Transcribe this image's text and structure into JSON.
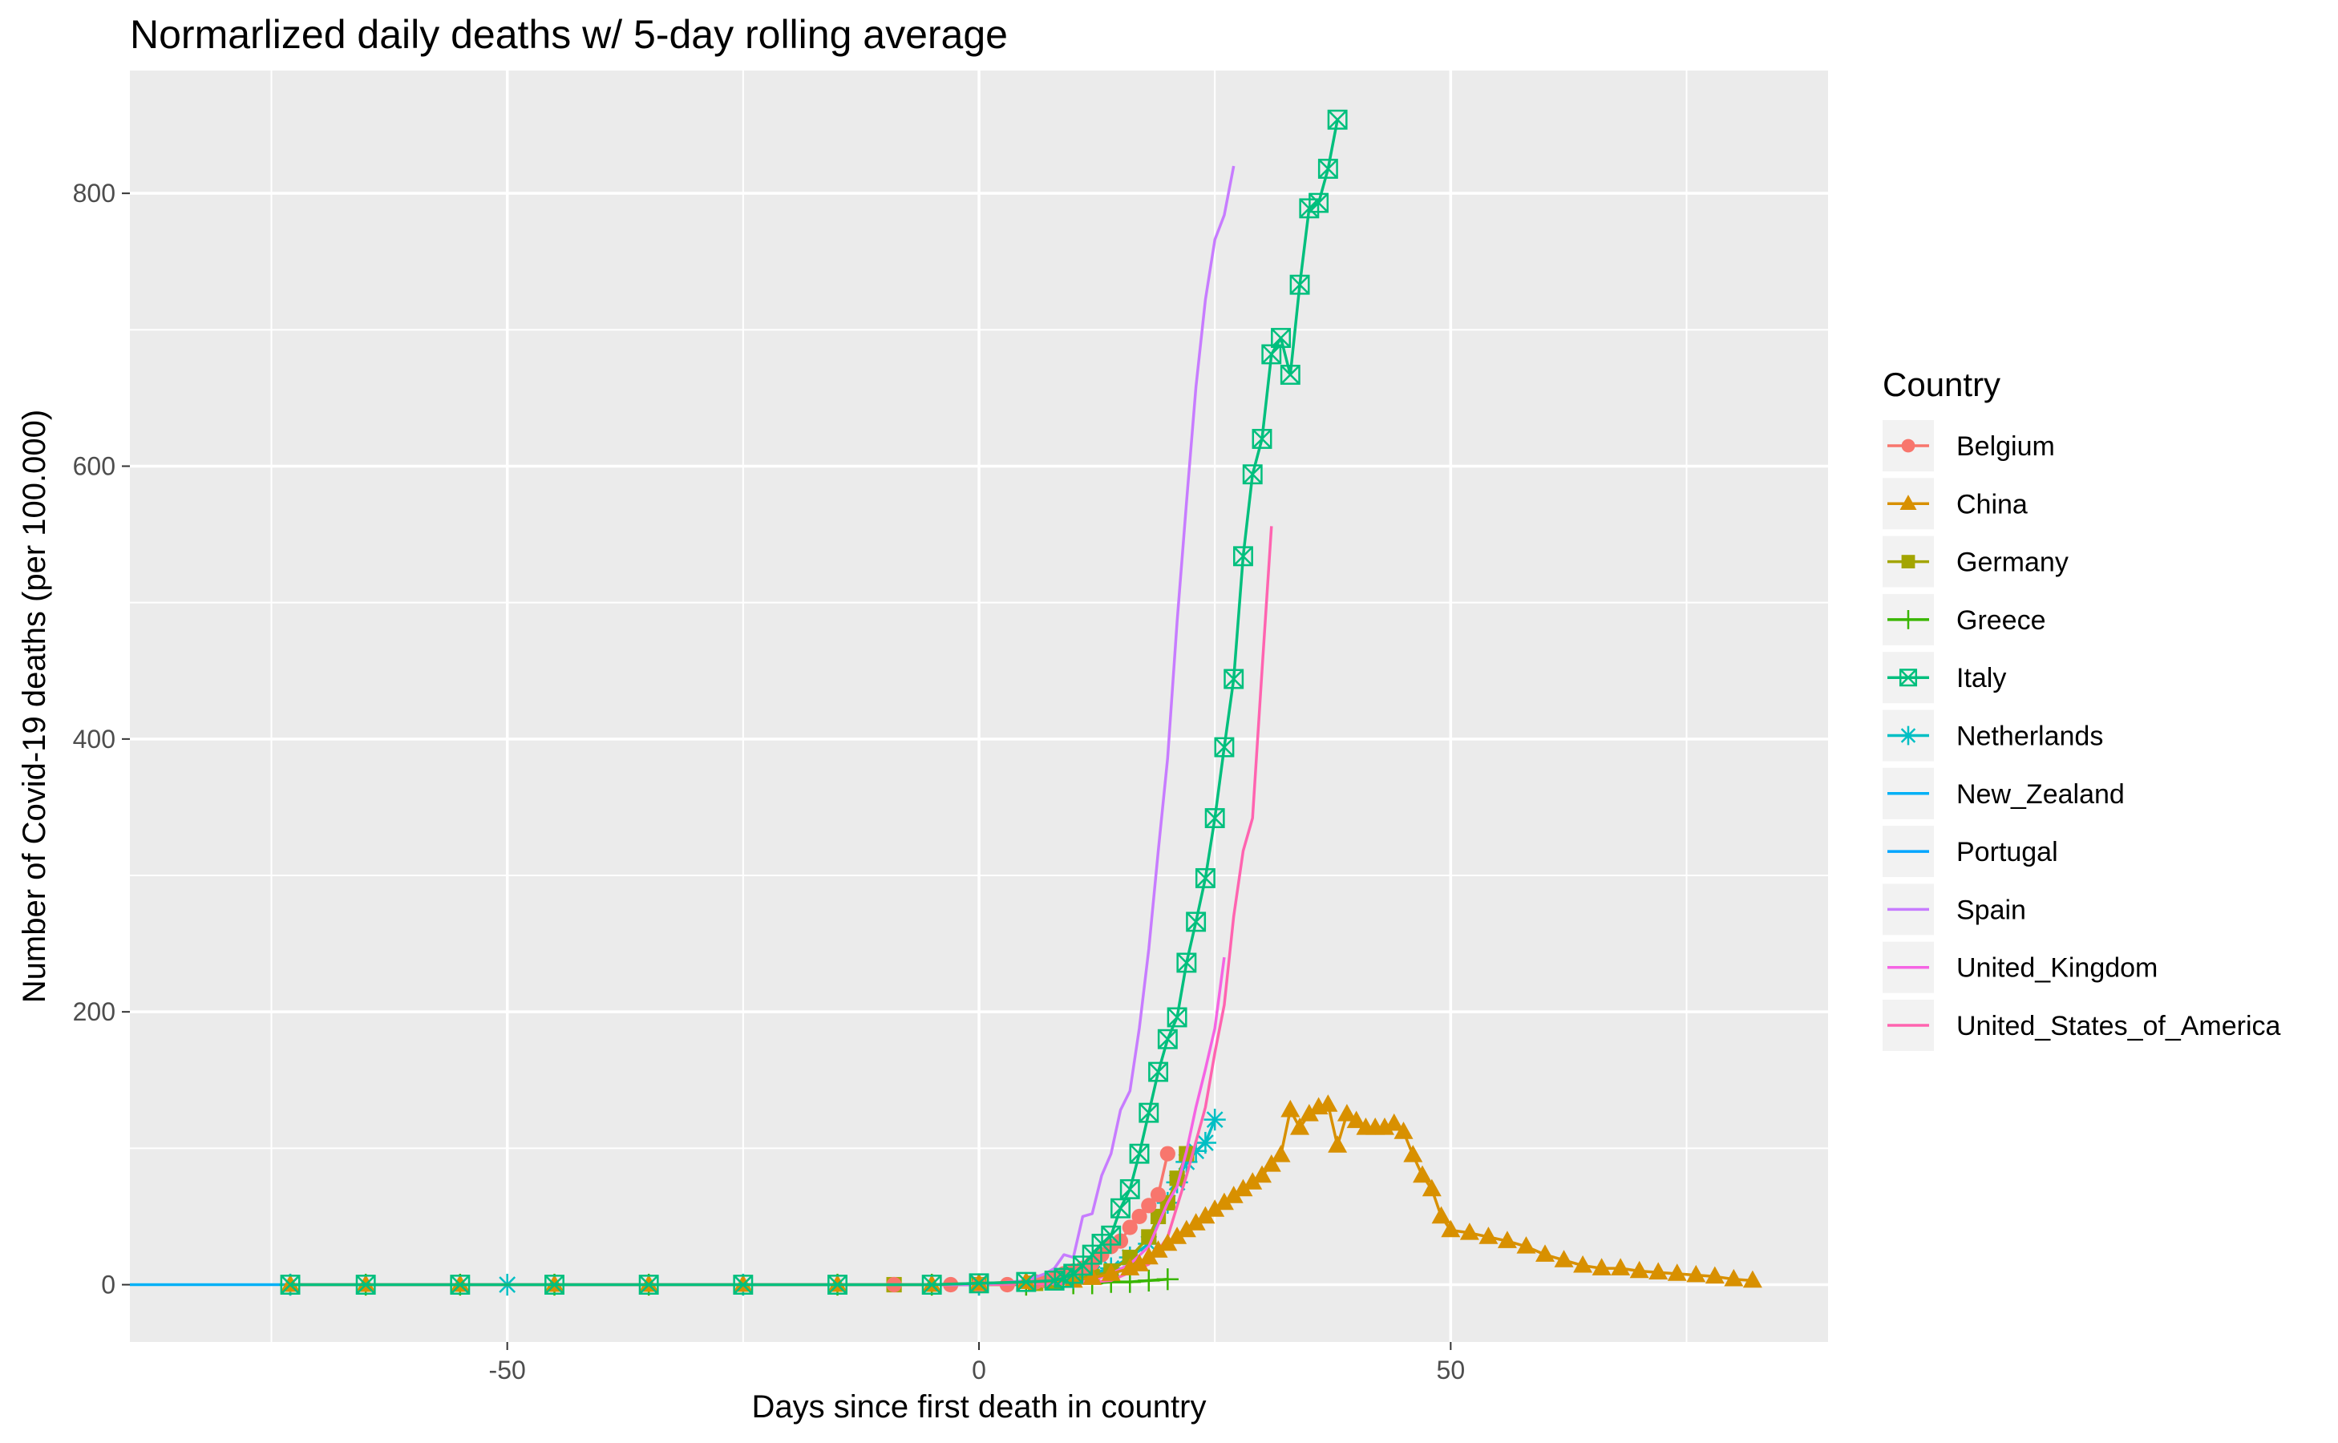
{
  "chart_data": {
    "type": "line",
    "title": "Normarlized daily deaths w/ 5-day rolling average",
    "xlabel": "Days since first death in country",
    "ylabel": "Number of Covid-19 deaths (per 100.000)",
    "xlim": [
      -90,
      90
    ],
    "ylim": [
      -42,
      890
    ],
    "x_ticks": [
      -50,
      0,
      50
    ],
    "y_ticks": [
      0,
      200,
      400,
      600,
      800
    ],
    "grid": true,
    "legend_title": "Country",
    "legend_position": "right",
    "series": [
      {
        "name": "Belgium",
        "color": "#F8766D",
        "marker": "circle",
        "x": [
          -9,
          -3,
          0,
          3,
          6,
          7,
          8,
          9,
          10,
          11,
          12,
          13,
          14,
          15,
          16,
          17,
          18,
          19,
          20
        ],
        "y": [
          0,
          0,
          0,
          0,
          2,
          3,
          5,
          8,
          10,
          12,
          16,
          22,
          28,
          32,
          42,
          50,
          58,
          66,
          96
        ]
      },
      {
        "name": "China",
        "color": "#D89000",
        "marker": "triangle",
        "x": [
          -73,
          -65,
          -55,
          -45,
          -35,
          -25,
          -15,
          -5,
          0,
          5,
          10,
          12,
          14,
          16,
          17,
          18,
          19,
          20,
          21,
          22,
          23,
          24,
          25,
          26,
          27,
          28,
          29,
          30,
          31,
          32,
          33,
          34,
          35,
          36,
          37,
          38,
          39,
          40,
          41,
          42,
          43,
          44,
          45,
          46,
          47,
          48,
          49,
          50,
          52,
          54,
          56,
          58,
          60,
          62,
          64,
          66,
          68,
          70,
          72,
          74,
          76,
          78,
          80,
          82
        ],
        "y": [
          0,
          0,
          0,
          0,
          0,
          0,
          0,
          0,
          1,
          2,
          3,
          5,
          8,
          12,
          15,
          20,
          25,
          30,
          35,
          40,
          45,
          50,
          55,
          60,
          65,
          70,
          75,
          80,
          88,
          95,
          128,
          115,
          125,
          130,
          132,
          102,
          125,
          120,
          115,
          115,
          115,
          118,
          112,
          95,
          80,
          70,
          50,
          40,
          38,
          35,
          32,
          28,
          22,
          18,
          14,
          12,
          12,
          10,
          9,
          8,
          7,
          6,
          4,
          3
        ]
      },
      {
        "name": "Germany",
        "color": "#A3A500",
        "marker": "square",
        "x": [
          -9,
          0,
          6,
          8,
          10,
          12,
          14,
          16,
          18,
          19,
          20,
          21,
          22
        ],
        "y": [
          0,
          0,
          1,
          2,
          4,
          6,
          10,
          20,
          35,
          50,
          60,
          78,
          96
        ]
      },
      {
        "name": "Greece",
        "color": "#39B600",
        "marker": "plus",
        "x": [
          -73,
          -65,
          -55,
          -45,
          -35,
          -25,
          -15,
          -5,
          0,
          5,
          10,
          12,
          14,
          16,
          18,
          20
        ],
        "y": [
          0,
          0,
          0,
          0,
          0,
          0,
          0,
          0,
          0,
          0,
          1,
          1,
          2,
          2,
          3,
          4
        ]
      },
      {
        "name": "Italy",
        "color": "#00BF7D",
        "marker": "boxcross",
        "x": [
          -73,
          -65,
          -55,
          -45,
          -35,
          -25,
          -15,
          -5,
          0,
          5,
          8,
          9,
          10,
          11,
          12,
          13,
          14,
          15,
          16,
          17,
          18,
          19,
          20,
          21,
          22,
          23,
          24,
          25,
          26,
          27,
          28,
          29,
          30,
          31,
          32,
          33,
          34,
          35,
          36,
          37,
          38
        ],
        "y": [
          0,
          0,
          0,
          0,
          0,
          0,
          0,
          0,
          1,
          2,
          3,
          5,
          8,
          14,
          22,
          30,
          36,
          56,
          70,
          96,
          126,
          156,
          180,
          196,
          236,
          266,
          298,
          342,
          394,
          444,
          534,
          594,
          620,
          682,
          694,
          667,
          733,
          789,
          793,
          818,
          854
        ]
      },
      {
        "name": "Netherlands",
        "color": "#00BFC4",
        "marker": "asterisk",
        "x": [
          -73,
          -50,
          -25,
          0,
          10,
          12,
          14,
          16,
          18,
          20,
          21,
          22,
          23,
          24,
          25
        ],
        "y": [
          0,
          0,
          0,
          0,
          5,
          8,
          12,
          20,
          30,
          60,
          75,
          90,
          98,
          104,
          121
        ]
      },
      {
        "name": "New_Zealand",
        "color": "#00B0F6",
        "marker": "none",
        "x": [
          -90,
          -73
        ],
        "y": [
          0,
          0
        ]
      },
      {
        "name": "Portugal",
        "color": "#00A5FF",
        "marker": "none",
        "x": [
          -73,
          -50,
          -20,
          0,
          10,
          14
        ],
        "y": [
          0,
          0,
          0,
          0,
          1,
          2
        ]
      },
      {
        "name": "Spain",
        "color": "#C77CFF",
        "marker": "none",
        "x": [
          -73,
          -50,
          -20,
          0,
          5,
          7,
          8,
          9,
          10,
          11,
          12,
          13,
          14,
          15,
          16,
          17,
          18,
          19,
          20,
          21,
          22,
          23,
          24,
          25,
          26,
          27
        ],
        "y": [
          0,
          0,
          0,
          0,
          3,
          8,
          12,
          22,
          20,
          50,
          52,
          80,
          96,
          128,
          142,
          188,
          246,
          318,
          386,
          486,
          574,
          658,
          722,
          766,
          784,
          820
        ]
      },
      {
        "name": "United_Kingdom",
        "color": "#F564E3",
        "marker": "none",
        "x": [
          -73,
          -50,
          -20,
          0,
          8,
          12,
          14,
          16,
          18,
          20,
          21,
          22,
          23,
          24,
          25,
          26
        ],
        "y": [
          0,
          0,
          0,
          0,
          1,
          3,
          8,
          15,
          28,
          60,
          72,
          98,
          130,
          158,
          188,
          240
        ]
      },
      {
        "name": "United_States_of_America",
        "color": "#FF64B0",
        "marker": "none",
        "x": [
          -73,
          -50,
          -20,
          0,
          10,
          14,
          18,
          20,
          22,
          24,
          25,
          26,
          27,
          28,
          29,
          30,
          31
        ],
        "y": [
          0,
          0,
          0,
          0,
          1,
          3,
          15,
          35,
          80,
          130,
          170,
          205,
          270,
          318,
          342,
          450,
          556
        ]
      }
    ]
  }
}
